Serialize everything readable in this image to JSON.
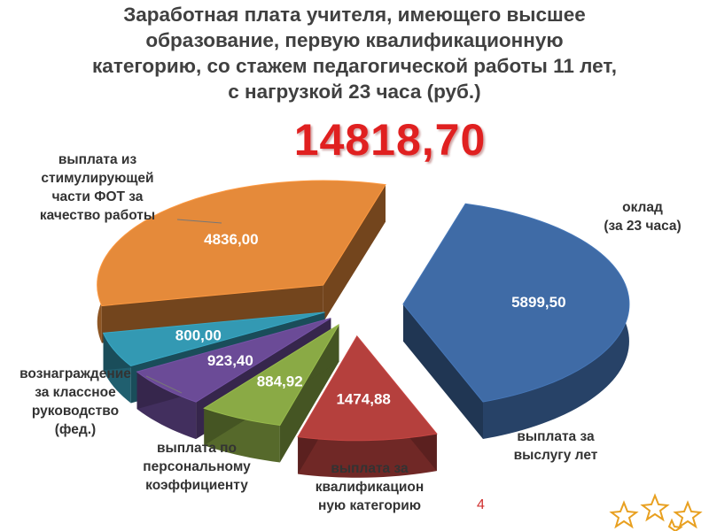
{
  "header": {
    "title_lines": [
      "Заработная плата учителя, имеющего высшее",
      "образование, первую квалификационную",
      "категорию, со стажем педагогической работы 11 лет,",
      "с нагрузкой 23 часа (руб.)"
    ],
    "total": "14818,70"
  },
  "chart_data": {
    "type": "pie",
    "title": "Заработная плата учителя, имеющего высшее образование, первую квалификационную категорию, со стажем педагогической работы 11 лет, с нагрузкой 23 часа (руб.)",
    "slices": [
      {
        "label": "оклад\n(за 23 часа)",
        "value": 5899.5,
        "value_label": "5899,50",
        "color": "#3f6ba6"
      },
      {
        "label": "выплата за\nвыслугу лет",
        "value": 1474.88,
        "value_label": "1474,88",
        "color": "#b5403d"
      },
      {
        "label": "выплата за\nквалификацион\nную категорию",
        "value": 884.92,
        "value_label": "884,92",
        "color": "#8aaa45"
      },
      {
        "label": "выплата по\nперсональному\nкоэффициенту",
        "value": 923.4,
        "value_label": "923,40",
        "color": "#6b4b97"
      },
      {
        "label": "вознаграждение\nза классное\nруководство\n(фед.)",
        "value": 800.0,
        "value_label": "800,00",
        "color": "#3399b3"
      },
      {
        "label": "выплата из\nстимулирующей\nчасти ФОТ за\nкачество работы",
        "value": 4836.0,
        "value_label": "4836,00",
        "color": "#e58a3a"
      }
    ]
  },
  "page_number": "4"
}
